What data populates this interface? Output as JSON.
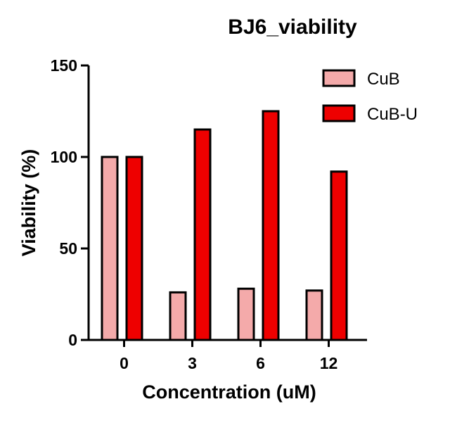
{
  "chart_data": {
    "type": "bar",
    "title": "BJ6_viability",
    "xlabel": "Concentration (uM)",
    "ylabel": "Viability (%)",
    "categories": [
      "0",
      "3",
      "6",
      "12"
    ],
    "series": [
      {
        "name": "CuB",
        "values": [
          100,
          26,
          28,
          27
        ],
        "color": "#F4AAAA"
      },
      {
        "name": "CuB-U",
        "values": [
          100,
          115,
          125,
          92
        ],
        "color": "#EE0000"
      }
    ],
    "ylim": [
      0,
      150
    ],
    "yticks": [
      0,
      50,
      100,
      150
    ],
    "grid": false,
    "legend_position": "top-right",
    "bar_edge_color": "#000000"
  }
}
